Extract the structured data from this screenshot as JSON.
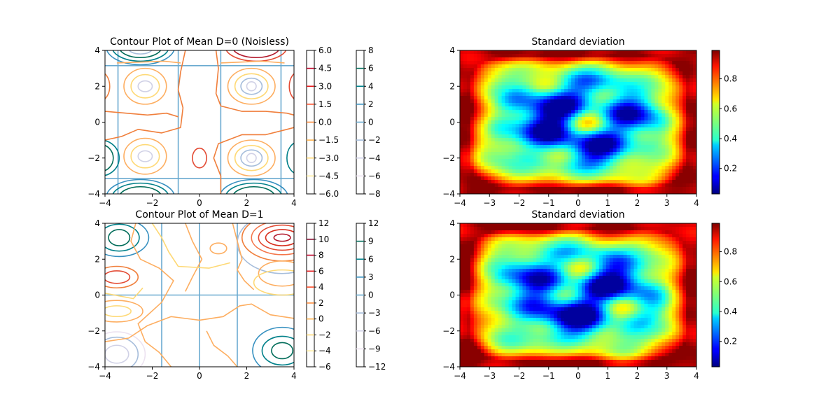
{
  "chart_data": [
    {
      "type": "contour",
      "title": "Contour Plot of Mean D=0 (Noisless)",
      "xlim": [
        -4,
        4
      ],
      "ylim": [
        -4,
        4
      ],
      "xticks": [
        "−4",
        "−2",
        "0",
        "2",
        "4"
      ],
      "yticks": [
        "−4",
        "−2",
        "0",
        "2",
        "4"
      ],
      "colorbar_filled_ticks": [
        "−6.0",
        "−4.5",
        "−3.0",
        "−1.5",
        "0.0",
        "1.5",
        "3.0",
        "4.5",
        "6.0"
      ],
      "colorbar_filled_levels": [
        -6,
        -4.5,
        -3,
        -1.5,
        0,
        1.5,
        3,
        4.5,
        6
      ],
      "colorbar_line_ticks": [
        "−8",
        "−6",
        "−4",
        "−2",
        "0",
        "2",
        "4",
        "6",
        "8"
      ],
      "colorbar_line_levels": [
        -8,
        -6,
        -4,
        -2,
        0,
        2,
        4,
        6,
        8
      ],
      "line_set_zero_grid_x": [
        -3.45,
        -0.9,
        0.9,
        3.45
      ],
      "line_set_zero_grid_y": [
        -3.15,
        3.15
      ],
      "cmap_filled": "YlOrRd",
      "cmap_lines": "PuBuGn"
    },
    {
      "type": "heatmap",
      "title": "Standard deviation",
      "xlim": [
        -4,
        4
      ],
      "ylim": [
        -4,
        4
      ],
      "xticks": [
        "−4",
        "−3",
        "−2",
        "−1",
        "0",
        "1",
        "2",
        "3",
        "4"
      ],
      "yticks": [
        "−4",
        "−2",
        "0",
        "2",
        "4"
      ],
      "colorbar_ticks": [
        "0.2",
        "0.4",
        "0.6",
        "0.8"
      ],
      "colorbar_values": [
        0.2,
        0.4,
        0.6,
        0.8
      ],
      "colorbar_range": [
        0.03,
        0.99
      ],
      "cmap": "jet"
    },
    {
      "type": "contour",
      "title": "Contour Plot of Mean D=1",
      "xlim": [
        -4,
        4
      ],
      "ylim": [
        -4,
        4
      ],
      "xticks": [
        "−4",
        "−2",
        "0",
        "2",
        "4"
      ],
      "yticks": [
        "−4",
        "−2",
        "0",
        "2",
        "4"
      ],
      "colorbar_filled_ticks": [
        "−6",
        "−4",
        "−2",
        "0",
        "2",
        "4",
        "6",
        "8",
        "10",
        "12"
      ],
      "colorbar_filled_levels": [
        -6,
        -4,
        -2,
        0,
        2,
        4,
        6,
        8,
        10,
        12
      ],
      "colorbar_line_ticks": [
        "−12",
        "−9",
        "−6",
        "−3",
        "0",
        "3",
        "6",
        "9",
        "12"
      ],
      "colorbar_line_levels": [
        -12,
        -9,
        -6,
        -3,
        0,
        3,
        6,
        9,
        12
      ],
      "line_set_zero_grid_x": [
        -1.6,
        0,
        1.6
      ],
      "line_set_zero_grid_y": [
        0
      ],
      "cmap_filled": "YlOrRd",
      "cmap_lines": "PuBuGn"
    },
    {
      "type": "heatmap",
      "title": "Standard deviation",
      "xlim": [
        -4,
        4
      ],
      "ylim": [
        -4,
        4
      ],
      "xticks": [
        "−4",
        "−3",
        "−2",
        "−1",
        "0",
        "1",
        "2",
        "3",
        "4"
      ],
      "yticks": [
        "−4",
        "−2",
        "0",
        "2",
        "4"
      ],
      "colorbar_ticks": [
        "0.2",
        "0.4",
        "0.6",
        "0.8"
      ],
      "colorbar_values": [
        0.2,
        0.4,
        0.6,
        0.8
      ],
      "colorbar_range": [
        0.03,
        0.99
      ],
      "cmap": "jet"
    }
  ]
}
